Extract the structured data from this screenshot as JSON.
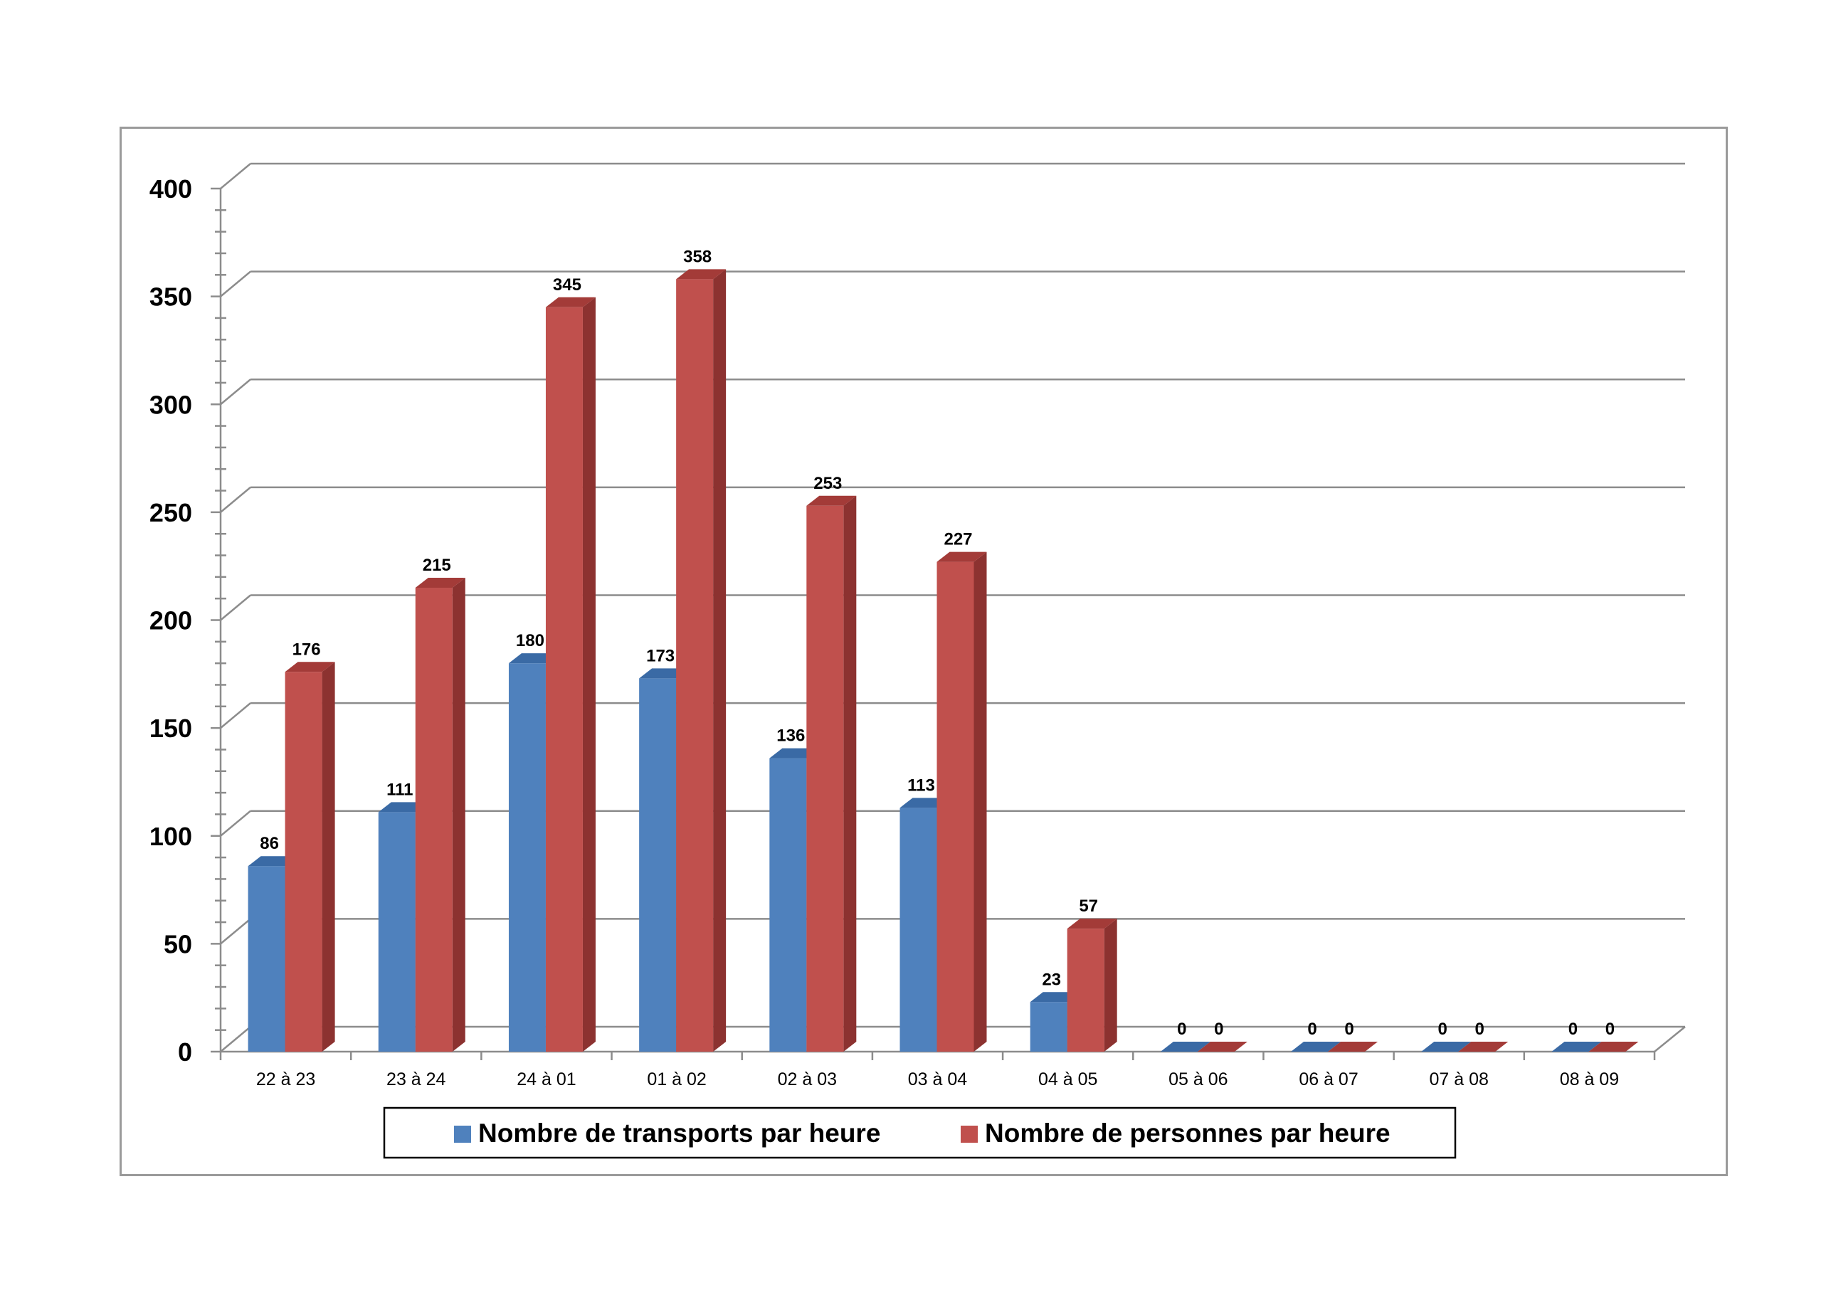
{
  "chart_data": {
    "type": "bar",
    "title": "",
    "xlabel": "",
    "ylabel": "",
    "ylim": [
      0,
      400
    ],
    "ytick_step": 50,
    "grid": true,
    "three_d": true,
    "legend_position": "bottom",
    "categories": [
      "22 à 23",
      "23 à 24",
      "24 à 01",
      "01 à 02",
      "02 à 03",
      "03 à 04",
      "04 à 05",
      "05 à 06",
      "06 à 07",
      "07 à 08",
      "08 à 09"
    ],
    "series": [
      {
        "name": "Nombre de transports par heure",
        "color": "#4f81bd",
        "top_color": "#3a6aa5",
        "side_color": "#2f5a8f",
        "values": [
          86,
          111,
          180,
          173,
          136,
          113,
          23,
          0,
          0,
          0,
          0
        ]
      },
      {
        "name": "Nombre de personnes par heure",
        "color": "#c0504d",
        "top_color": "#a33b38",
        "side_color": "#8c3230",
        "values": [
          176,
          215,
          345,
          358,
          253,
          227,
          57,
          0,
          0,
          0,
          0
        ]
      }
    ]
  }
}
